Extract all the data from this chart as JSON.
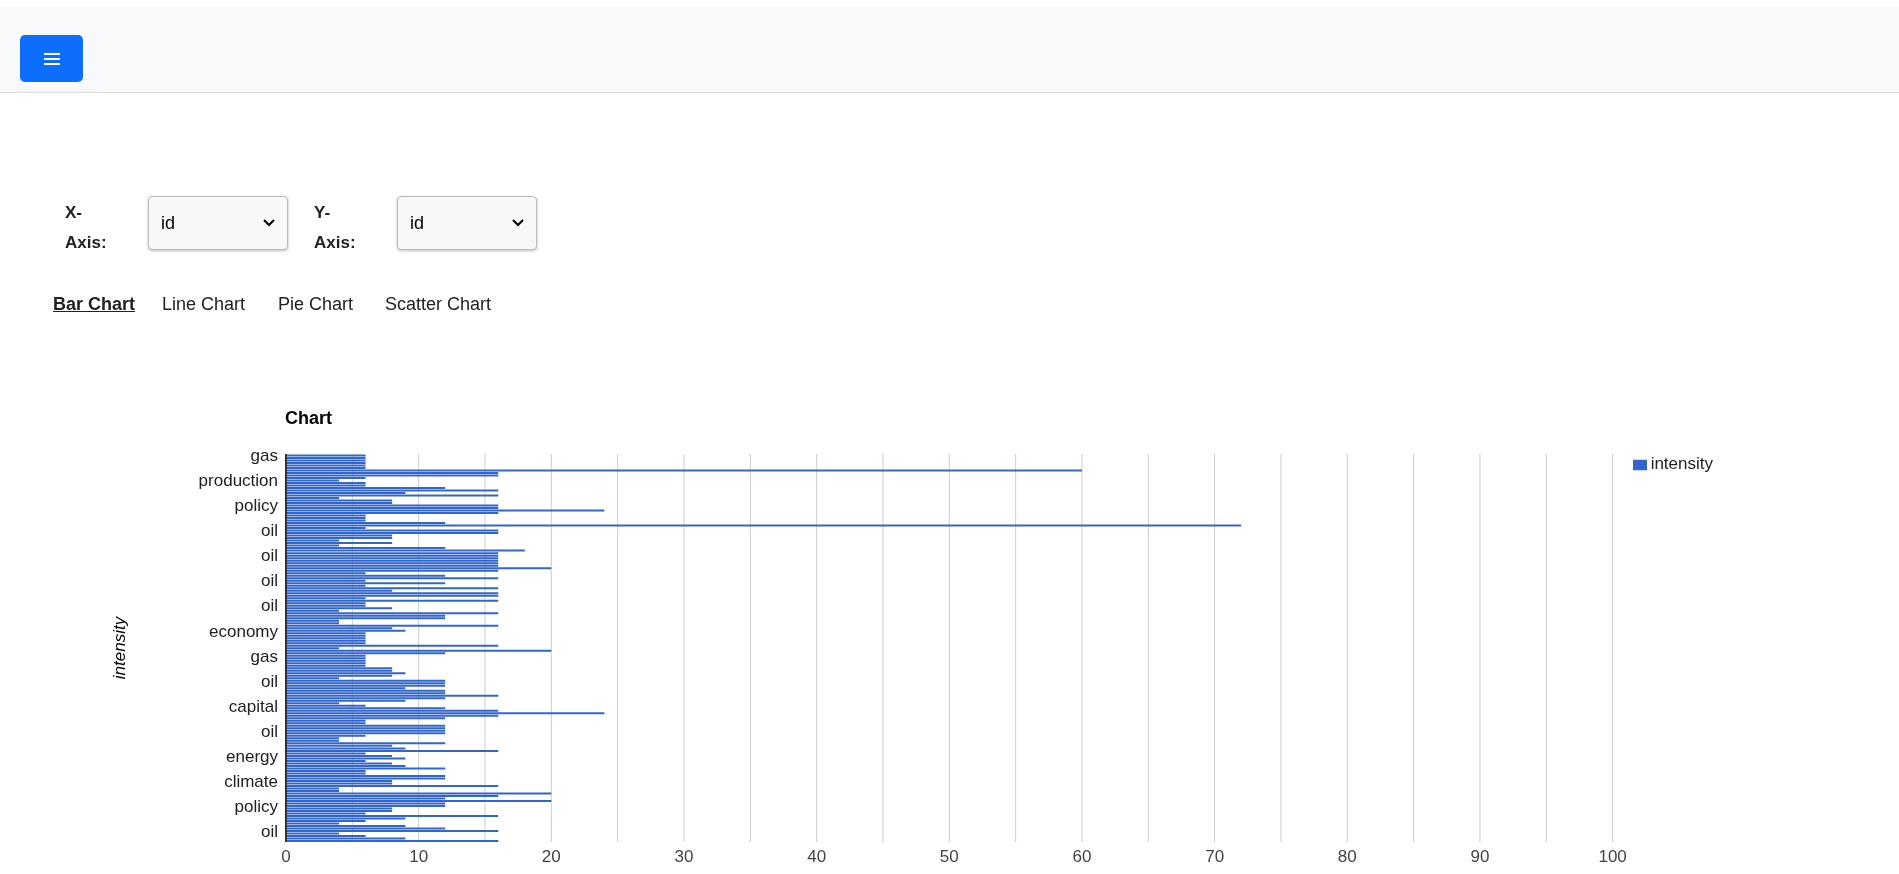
{
  "chart_data": {
    "type": "bar",
    "orientation": "horizontal",
    "title": "Chart",
    "ylabel": "intensity",
    "annotations": [
      "X-Axis:",
      "id",
      "Y-Axis:",
      "id",
      "Bar Chart",
      "Line Chart",
      "Pie Chart",
      "Scatter Chart"
    ],
    "categories": [
      "gas",
      null,
      null,
      null,
      null,
      null,
      null,
      null,
      null,
      null,
      "production",
      null,
      null,
      null,
      null,
      null,
      null,
      null,
      null,
      null,
      "policy",
      null,
      null,
      null,
      null,
      null,
      null,
      null,
      null,
      null,
      "oil",
      null,
      null,
      null,
      null,
      null,
      null,
      null,
      null,
      null,
      "oil",
      null,
      null,
      null,
      null,
      null,
      null,
      null,
      null,
      null,
      "oil",
      null,
      null,
      null,
      null,
      null,
      null,
      null,
      null,
      null,
      "oil",
      null,
      null,
      null,
      null,
      null,
      null,
      null,
      null,
      null,
      "economy",
      null,
      null,
      null,
      null,
      null,
      null,
      null,
      null,
      null,
      "gas",
      null,
      null,
      null,
      null,
      null,
      null,
      null,
      null,
      null,
      "oil",
      null,
      null,
      null,
      null,
      null,
      null,
      null,
      null,
      null,
      "capital",
      null,
      null,
      null,
      null,
      null,
      null,
      null,
      null,
      null,
      "oil",
      null,
      null,
      null,
      null,
      null,
      null,
      null,
      null,
      null,
      "energy",
      null,
      null,
      null,
      null,
      null,
      null,
      null,
      null,
      null,
      "climate",
      null,
      null,
      null,
      null,
      null,
      null,
      null,
      null,
      null,
      "policy",
      null,
      null,
      null,
      null,
      null,
      null,
      null,
      null,
      null,
      "oil",
      null,
      null,
      null,
      null
    ],
    "series": [
      {
        "name": "intensity",
        "color": "#3366cc",
        "values": [
          6,
          6,
          6,
          6,
          6,
          6,
          60,
          16,
          16,
          6,
          4,
          6,
          6,
          12,
          16,
          9,
          16,
          4,
          8,
          8,
          16,
          16,
          24,
          16,
          6,
          6,
          6,
          12,
          72,
          6,
          16,
          16,
          8,
          8,
          4,
          8,
          4,
          12,
          18,
          16,
          16,
          16,
          16,
          16,
          16,
          20,
          16,
          6,
          12,
          16,
          6,
          12,
          6,
          16,
          8,
          16,
          16,
          6,
          16,
          6,
          6,
          8,
          4,
          16,
          12,
          12,
          4,
          4,
          16,
          8,
          9,
          6,
          6,
          6,
          6,
          6,
          16,
          4,
          20,
          12,
          6,
          6,
          6,
          6,
          6,
          8,
          8,
          9,
          8,
          4,
          12,
          12,
          12,
          9,
          12,
          12,
          16,
          12,
          9,
          4,
          6,
          12,
          16,
          24,
          16,
          12,
          6,
          6,
          12,
          12,
          12,
          12,
          6,
          4,
          4,
          12,
          8,
          9,
          16,
          6,
          8,
          9,
          6,
          8,
          9,
          12,
          6,
          6,
          12,
          12,
          8,
          8,
          16,
          4,
          4,
          20,
          16,
          12,
          20,
          12,
          12,
          8,
          8,
          6,
          16,
          9,
          6,
          4,
          9,
          12,
          16,
          4,
          6,
          9,
          16
        ]
      }
    ],
    "xlim": [
      0,
      100
    ],
    "xticks": [
      0,
      {
        "value": 5,
        "label": null
      },
      10,
      {
        "value": 15,
        "label": null
      },
      20,
      {
        "value": 25,
        "label": null
      },
      30,
      {
        "value": 35,
        "label": null
      },
      40,
      {
        "value": 45,
        "label": null
      },
      50,
      {
        "value": 55,
        "label": null
      },
      60,
      {
        "value": 65,
        "label": null
      },
      70,
      {
        "value": 75,
        "label": null
      },
      80,
      {
        "value": 85,
        "label": null
      },
      90,
      {
        "value": 95,
        "label": null
      },
      100
    ],
    "grid": "x",
    "legend": "top right"
  }
}
